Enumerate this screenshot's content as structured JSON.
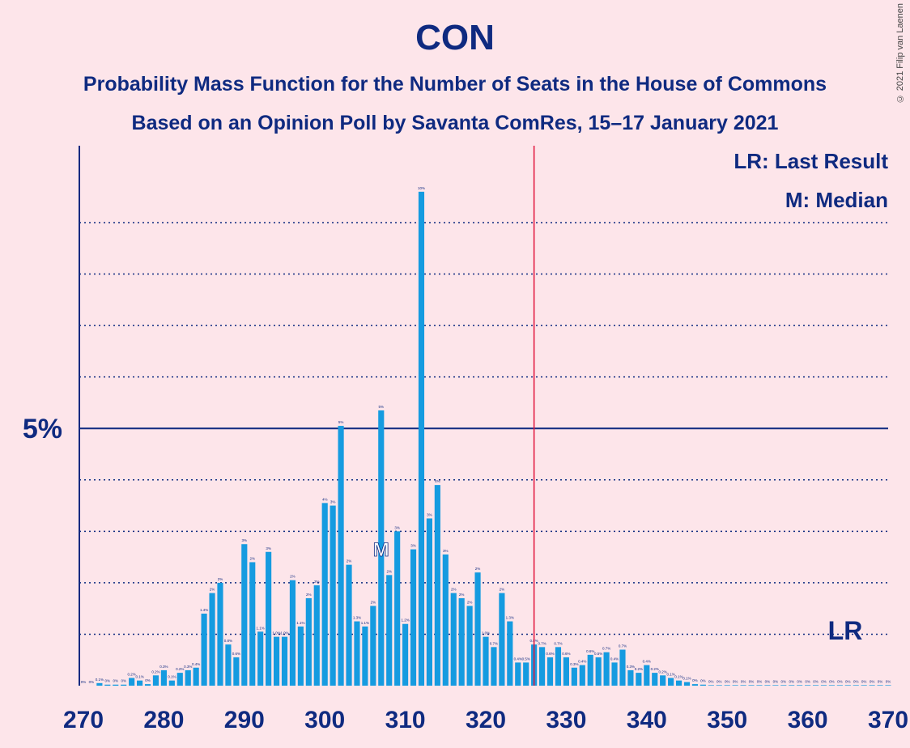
{
  "title": "CON",
  "subtitle1": "Probability Mass Function for the Number of Seats in the House of Commons",
  "subtitle2": "Based on an Opinion Poll by Savanta ComRes, 15–17 January 2021",
  "copyright": "© 2021 Filip van Laenen",
  "legend": {
    "lr": "LR: Last Result",
    "m": "M: Median"
  },
  "lr_marker_label": "LR",
  "colors": {
    "background": "#fde5ea",
    "bar": "#159be0",
    "axis": "#0f2a80",
    "last_result_line": "#e0143c"
  },
  "chart_data": {
    "type": "bar",
    "xlabel": "",
    "ylabel": "",
    "x_ticks": [
      270,
      280,
      290,
      300,
      310,
      320,
      330,
      340,
      350,
      360,
      370
    ],
    "y_tick_label": "5%",
    "y_tick_value": 5,
    "y_range": [
      0,
      10.4
    ],
    "x_range": [
      270,
      370
    ],
    "last_result": 326,
    "median": 307,
    "grid": "dotted",
    "legend_position": "top-right",
    "x": [
      270,
      271,
      272,
      273,
      274,
      275,
      276,
      277,
      278,
      279,
      280,
      281,
      282,
      283,
      284,
      285,
      286,
      287,
      288,
      289,
      290,
      291,
      292,
      293,
      294,
      295,
      296,
      297,
      298,
      299,
      300,
      301,
      302,
      303,
      304,
      305,
      306,
      307,
      308,
      309,
      310,
      311,
      312,
      313,
      314,
      315,
      316,
      317,
      318,
      319,
      320,
      321,
      322,
      323,
      324,
      325,
      326,
      327,
      328,
      329,
      330,
      331,
      332,
      333,
      334,
      335,
      336,
      337,
      338,
      339,
      340,
      341,
      342,
      343,
      344,
      345,
      346,
      347,
      348,
      349,
      350,
      351,
      352,
      353,
      354,
      355,
      356,
      357,
      358,
      359,
      360,
      361,
      362,
      363,
      364,
      365,
      366,
      367,
      368,
      369,
      370
    ],
    "values": [
      0,
      0,
      0.05,
      0.02,
      0.02,
      0.02,
      0.15,
      0.1,
      0.03,
      0.2,
      0.3,
      0.1,
      0.25,
      0.3,
      0.35,
      1.4,
      1.8,
      2.0,
      0.8,
      0.55,
      2.75,
      2.4,
      1.05,
      2.6,
      0.95,
      0.95,
      2.05,
      1.15,
      1.7,
      1.95,
      3.55,
      3.5,
      5.05,
      2.35,
      1.25,
      1.15,
      1.55,
      5.35,
      2.15,
      3.0,
      1.2,
      2.65,
      9.6,
      3.25,
      3.9,
      2.55,
      1.8,
      1.7,
      1.55,
      2.2,
      0.95,
      0.75,
      1.8,
      1.25,
      0.45,
      0.45,
      0.8,
      0.75,
      0.55,
      0.75,
      0.55,
      0.35,
      0.4,
      0.6,
      0.55,
      0.65,
      0.45,
      0.7,
      0.3,
      0.25,
      0.4,
      0.25,
      0.2,
      0.15,
      0.1,
      0.07,
      0.03,
      0.02,
      0.01,
      0.01,
      0.01,
      0.01,
      0.01,
      0.01,
      0.01,
      0.01,
      0.01,
      0.01,
      0.01,
      0.01,
      0.01,
      0.01,
      0.01,
      0.01,
      0.01,
      0.01,
      0.01,
      0.01,
      0.01,
      0.01,
      0.01
    ],
    "data_labels": [
      "0%",
      "0%",
      "0.1%",
      "0%",
      "0%",
      "0%",
      "0.2%",
      "0.1%",
      "0%",
      "0.2%",
      "0.3%",
      "0.1%",
      "0.2%",
      "0.3%",
      "0.4%",
      "1.4%",
      "2%",
      "2%",
      "0.8%",
      "0.6%",
      "3%",
      "2%",
      "1.1%",
      "3%",
      "1.0%",
      "1.0%",
      "2%",
      "1.1%",
      "2%",
      "2%",
      "4%",
      "3%",
      "5%",
      "2%",
      "1.3%",
      "1.1%",
      "2%",
      "5%",
      "2%",
      "3%",
      "1.2%",
      "3%",
      "10%",
      "3%",
      "4%",
      "3%",
      "2%",
      "2%",
      "2%",
      "2%",
      "1.0%",
      "0.7%",
      "2%",
      "1.3%",
      "0.4%",
      "0.5%",
      "0.8%",
      "0.7%",
      "0.6%",
      "0.7%",
      "0.6%",
      "0.3%",
      "0.4%",
      "0.6%",
      "0.5%",
      "0.7%",
      "0.4%",
      "0.7%",
      "0.3%",
      "0.2%",
      "0.4%",
      "0.2%",
      "0.2%",
      "0.1%",
      "0.1%",
      "0.1%",
      "0%",
      "0%",
      "0%",
      "0%",
      "0%",
      "0%",
      "0%",
      "0%",
      "0%",
      "0%",
      "0%",
      "0%",
      "0%",
      "0%",
      "0%",
      "0%",
      "0%",
      "0%",
      "0%",
      "0%",
      "0%",
      "0%",
      "0%",
      "0%",
      "0%"
    ]
  }
}
